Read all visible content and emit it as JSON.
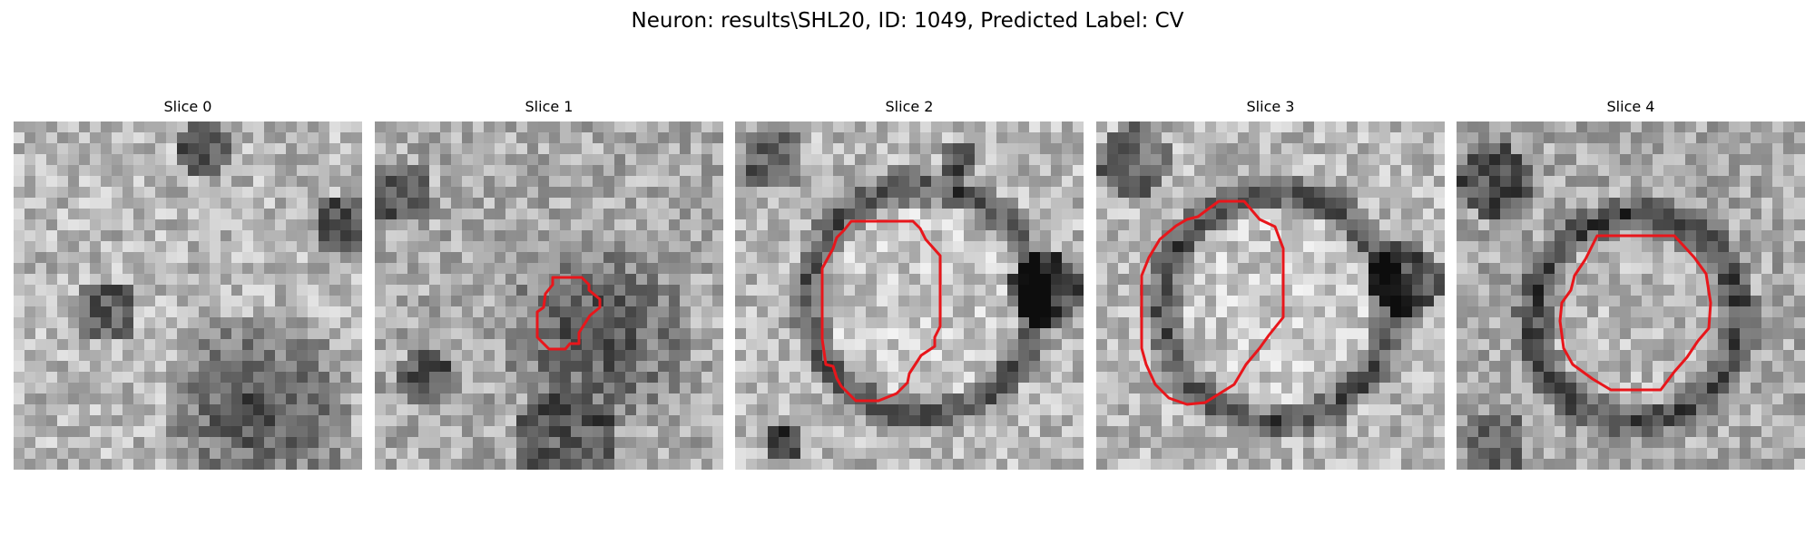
{
  "figure": {
    "title": "Neuron: results\\SHL20, ID: 1049, Predicted Label: CV"
  },
  "panels": [
    {
      "title": "Slice 0",
      "has_contour": false,
      "seed": 11,
      "center": [
        0.45,
        0.72
      ],
      "dark_blob": 0.0
    },
    {
      "title": "Slice 1",
      "has_contour": true,
      "seed": 23,
      "center": [
        0.55,
        0.62
      ],
      "dark_blob": 0.35
    },
    {
      "title": "Slice 2",
      "has_contour": true,
      "seed": 37,
      "center": [
        0.52,
        0.5
      ],
      "dark_blob": 0.0
    },
    {
      "title": "Slice 3",
      "has_contour": true,
      "seed": 41,
      "center": [
        0.5,
        0.52
      ],
      "dark_blob": 0.0
    },
    {
      "title": "Slice 4",
      "has_contour": true,
      "seed": 53,
      "center": [
        0.5,
        0.55
      ],
      "dark_blob": 0.0
    }
  ],
  "colors": {
    "contour": "#e8161b",
    "background": "#ffffff"
  }
}
